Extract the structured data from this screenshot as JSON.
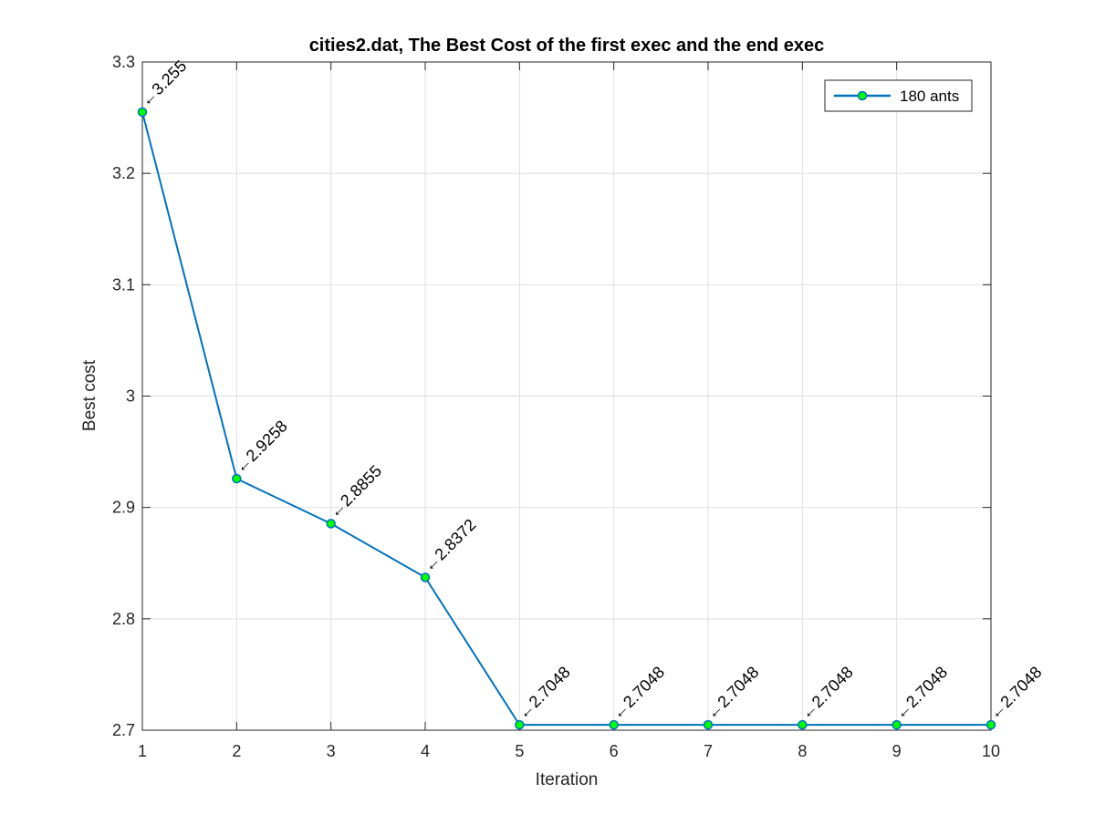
{
  "chart_data": {
    "type": "line",
    "title": "cities2.dat, The Best Cost  of the first exec and the end exec",
    "xlabel": "Iteration",
    "ylabel": "Best cost",
    "xlim": [
      1,
      10
    ],
    "ylim": [
      2.7,
      3.3
    ],
    "xticks": [
      1,
      2,
      3,
      4,
      5,
      6,
      7,
      8,
      9,
      10
    ],
    "yticks": [
      2.7,
      2.8,
      2.9,
      3,
      3.1,
      3.2,
      3.3
    ],
    "xtick_labels": [
      "1",
      "2",
      "3",
      "4",
      "5",
      "6",
      "7",
      "8",
      "9",
      "10"
    ],
    "ytick_labels": [
      "2.7",
      "2.8",
      "2.9",
      "3",
      "3.1",
      "3.2",
      "3.3"
    ],
    "grid": true,
    "legend_position": "top-right",
    "series": [
      {
        "name": "180 ants",
        "line_color": "#0072BD",
        "marker_fill": "#00FF00",
        "x": [
          1,
          2,
          3,
          4,
          5,
          6,
          7,
          8,
          9,
          10
        ],
        "y": [
          3.255,
          2.9258,
          2.8855,
          2.8372,
          2.7048,
          2.7048,
          2.7048,
          2.7048,
          2.7048,
          2.7048
        ],
        "data_labels": [
          "←3.255",
          "←2.9258",
          "←2.8855",
          "←2.8372",
          "←2.7048",
          "←2.7048",
          "←2.7048",
          "←2.7048",
          "←2.7048",
          "←2.7048"
        ]
      }
    ]
  }
}
